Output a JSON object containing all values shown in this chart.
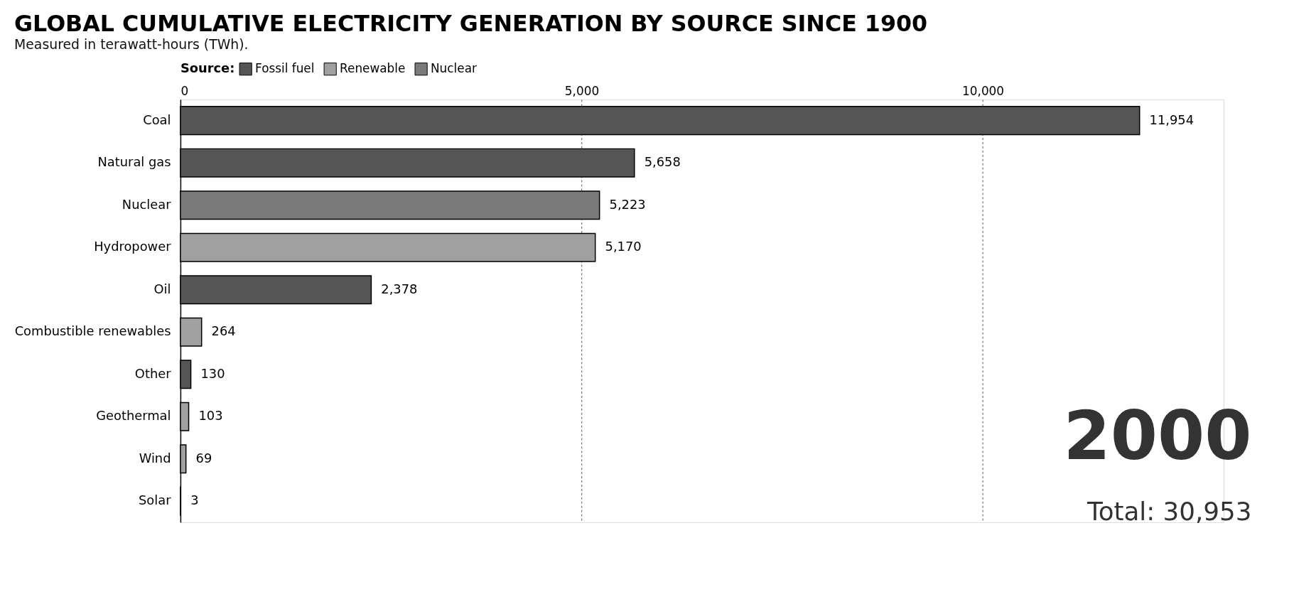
{
  "chart_data": {
    "type": "bar",
    "orientation": "horizontal",
    "title": "GLOBAL CUMULATIVE ELECTRICITY GENERATION BY SOURCE SINCE 1900",
    "subtitle": "Measured in terawatt-hours (TWh).",
    "legend_title": "Source:",
    "categories": [
      "Coal",
      "Natural gas",
      "Nuclear",
      "Hydropower",
      "Oil",
      "Combustible renewables",
      "Other",
      "Geothermal",
      "Wind",
      "Solar"
    ],
    "series": [
      {
        "name": "Fossil fuel",
        "color": "#555555",
        "values": [
          11954,
          5658,
          null,
          null,
          2378,
          null,
          130,
          null,
          null,
          null
        ],
        "value_labels": [
          "11,954",
          "5,658",
          null,
          null,
          "2,378",
          null,
          "130",
          null,
          null,
          null
        ]
      },
      {
        "name": "Renewable",
        "color": "#a0a0a0",
        "values": [
          null,
          null,
          null,
          5170,
          null,
          264,
          null,
          103,
          69,
          3
        ],
        "value_labels": [
          null,
          null,
          null,
          "5,170",
          null,
          "264",
          null,
          "103",
          "69",
          "3"
        ]
      },
      {
        "name": "Nuclear",
        "color": "#7a7a7a",
        "values": [
          null,
          null,
          5223,
          null,
          null,
          null,
          null,
          null,
          null,
          null
        ],
        "value_labels": [
          null,
          null,
          "5,223",
          null,
          null,
          null,
          null,
          null,
          null,
          null
        ]
      }
    ],
    "xlim": [
      0,
      13000
    ],
    "xticks": [
      0,
      {
        "value": 5000,
        "label": "5,000"
      },
      {
        "value": 10000,
        "label": "10,000"
      }
    ],
    "grid": "x",
    "legend": "top",
    "annotations": [
      "2000",
      "Total: 30,953"
    ]
  }
}
